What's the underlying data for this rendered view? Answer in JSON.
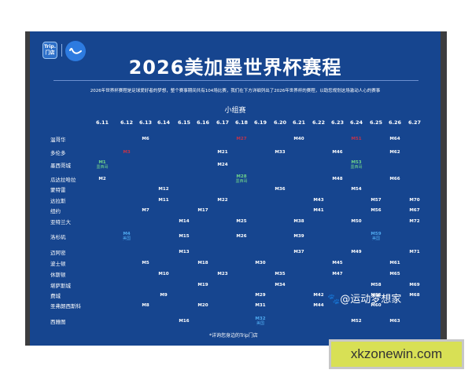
{
  "poster": {
    "logo": {
      "brand_text": "Trip.",
      "store_text": "门店",
      "icon": "smile-logo-icon"
    },
    "title": "2026美加墨世界杯赛程",
    "subtitle": "2026年世界杯赛程是足球爱好者的梦想，整个赛事期间共有104场比赛，我们在下方详细列出了2026年世界杯的赛程，以助您规划这场激动人心的赛事",
    "section": "小组赛",
    "footnote": "*详询您身边的Trip门店",
    "colors": {
      "background": "#16458f",
      "red": "#c2344a",
      "green": "#6fd38a",
      "lightblue": "#4fa9ef"
    }
  },
  "schedule": {
    "dates": [
      "6.11",
      "6.12",
      "6.13",
      "6.14",
      "6.15",
      "6.16",
      "6.17",
      "6.18",
      "6.19",
      "6.20",
      "6.21",
      "6.22",
      "6.23",
      "6.24",
      "6.25",
      "6.26",
      "6.27"
    ],
    "cities": [
      {
        "name": "温哥华",
        "matches": [
          {
            "date": "6.13",
            "label": "M6"
          },
          {
            "date": "6.18",
            "label": "M27",
            "color": "red"
          },
          {
            "date": "6.21",
            "label": "M40"
          },
          {
            "date": "6.24",
            "label": "M51",
            "color": "red"
          },
          {
            "date": "6.26",
            "label": "M64"
          }
        ]
      },
      {
        "name": "多伦多",
        "matches": [
          {
            "date": "6.12",
            "label": "M3",
            "color": "red"
          },
          {
            "date": "6.17",
            "label": "M21"
          },
          {
            "date": "6.20",
            "label": "M33"
          },
          {
            "date": "6.23",
            "label": "M46"
          },
          {
            "date": "6.26",
            "label": "M62"
          }
        ]
      },
      {
        "name": "墨西哥城",
        "matches": [
          {
            "date": "6.11",
            "label": "M1",
            "sub": "墨西哥",
            "color": "green"
          },
          {
            "date": "6.17",
            "label": "M24"
          },
          {
            "date": "6.24",
            "label": "M53",
            "sub": "墨西哥",
            "color": "green"
          }
        ]
      },
      {
        "name": "瓜达拉哈拉",
        "matches": [
          {
            "date": "6.11",
            "label": "M2"
          },
          {
            "date": "6.18",
            "label": "M28",
            "sub": "墨西哥",
            "color": "green"
          },
          {
            "date": "6.23",
            "label": "M48"
          },
          {
            "date": "6.26",
            "label": "M66"
          }
        ]
      },
      {
        "name": "蒙特雷",
        "matches": [
          {
            "date": "6.14",
            "label": "M12"
          },
          {
            "date": "6.20",
            "label": "M36"
          },
          {
            "date": "6.24",
            "label": "M54"
          }
        ]
      },
      {
        "name": "达拉斯",
        "matches": [
          {
            "date": "6.14",
            "label": "M11"
          },
          {
            "date": "6.17",
            "label": "M22"
          },
          {
            "date": "6.22",
            "label": "M43"
          },
          {
            "date": "6.25",
            "label": "M57"
          },
          {
            "date": "6.27",
            "label": "M70"
          }
        ]
      },
      {
        "name": "纽约",
        "matches": [
          {
            "date": "6.13",
            "label": "M7"
          },
          {
            "date": "6.16",
            "label": "M17"
          },
          {
            "date": "6.22",
            "label": "M41"
          },
          {
            "date": "6.25",
            "label": "M56"
          },
          {
            "date": "6.27",
            "label": "M67"
          }
        ]
      },
      {
        "name": "亚特兰大",
        "matches": [
          {
            "date": "6.15",
            "label": "M14"
          },
          {
            "date": "6.18",
            "label": "M25"
          },
          {
            "date": "6.21",
            "label": "M38"
          },
          {
            "date": "6.24",
            "label": "M50"
          },
          {
            "date": "6.27",
            "label": "M72"
          }
        ]
      },
      {
        "name": "洛杉矶",
        "matches": [
          {
            "date": "6.12",
            "label": "M4",
            "sub": "美国",
            "color": "lightblue"
          },
          {
            "date": "6.15",
            "label": "M15"
          },
          {
            "date": "6.18",
            "label": "M26"
          },
          {
            "date": "6.21",
            "label": "M39"
          },
          {
            "date": "6.25",
            "label": "M59",
            "sub": "美国",
            "color": "lightblue"
          }
        ]
      },
      {
        "name": "迈阿密",
        "matches": [
          {
            "date": "6.15",
            "label": "M13"
          },
          {
            "date": "6.21",
            "label": "M37"
          },
          {
            "date": "6.24",
            "label": "M49"
          },
          {
            "date": "6.27",
            "label": "M71"
          }
        ]
      },
      {
        "name": "波士顿",
        "matches": [
          {
            "date": "6.13",
            "label": "M5"
          },
          {
            "date": "6.16",
            "label": "M18"
          },
          {
            "date": "6.19",
            "label": "M30"
          },
          {
            "date": "6.23",
            "label": "M45"
          },
          {
            "date": "6.26",
            "label": "M61"
          }
        ]
      },
      {
        "name": "休斯顿",
        "matches": [
          {
            "date": "6.14",
            "label": "M10"
          },
          {
            "date": "6.17",
            "label": "M23"
          },
          {
            "date": "6.20",
            "label": "M35"
          },
          {
            "date": "6.23",
            "label": "M47"
          },
          {
            "date": "6.26",
            "label": "M65"
          }
        ]
      },
      {
        "name": "堪萨斯城",
        "matches": [
          {
            "date": "6.16",
            "label": "M19"
          },
          {
            "date": "6.20",
            "label": "M34"
          },
          {
            "date": "6.25",
            "label": "M58"
          },
          {
            "date": "6.27",
            "label": "M69"
          }
        ]
      },
      {
        "name": "费城",
        "matches": [
          {
            "date": "6.14",
            "label": "M9"
          },
          {
            "date": "6.19",
            "label": "M29"
          },
          {
            "date": "6.22",
            "label": "M42"
          },
          {
            "date": "6.25",
            "label": "M55"
          },
          {
            "date": "6.27",
            "label": "M68"
          }
        ]
      },
      {
        "name": "圣弗朗西斯科",
        "matches": [
          {
            "date": "6.13",
            "label": "M8"
          },
          {
            "date": "6.16",
            "label": "M20"
          },
          {
            "date": "6.19",
            "label": "M31"
          },
          {
            "date": "6.22",
            "label": "M44"
          },
          {
            "date": "6.25",
            "label": "M60"
          }
        ]
      },
      {
        "name": "西雅图",
        "matches": [
          {
            "date": "6.15",
            "label": "M16"
          },
          {
            "date": "6.19",
            "label": "M32",
            "sub": "美国",
            "color": "lightblue"
          },
          {
            "date": "6.24",
            "label": "M52"
          },
          {
            "date": "6.26",
            "label": "M63"
          }
        ]
      }
    ]
  },
  "overlay": {
    "weibo_handle": "@运动梦想家",
    "watermark": "xkzonewin.com"
  }
}
